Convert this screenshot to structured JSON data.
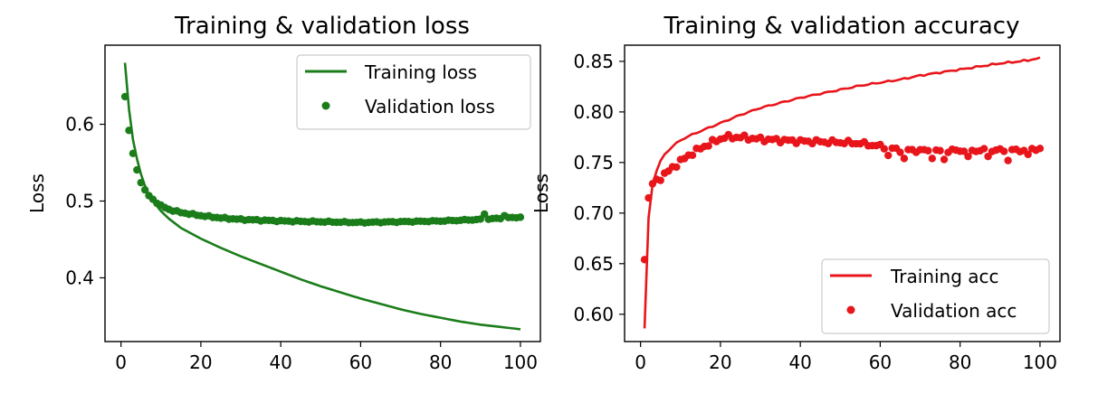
{
  "chart_data": [
    {
      "type": "line",
      "title": "Training & validation loss",
      "xlabel": "",
      "ylabel": "Loss",
      "xlim": [
        -4,
        105
      ],
      "ylim": [
        0.317,
        0.703
      ],
      "xticks": [
        0,
        20,
        40,
        60,
        80,
        100
      ],
      "xtick_labels": [
        "0",
        "20",
        "40",
        "60",
        "80",
        "100"
      ],
      "yticks": [
        0.4,
        0.5,
        0.6
      ],
      "ytick_labels": [
        "0.4",
        "0.5",
        "0.6"
      ],
      "legend_position": "top-right",
      "grid": false,
      "series": [
        {
          "name": "Training loss",
          "style": "line",
          "color": "#1a7d1a",
          "anchors": [
            [
              1,
              0.68
            ],
            [
              2,
              0.62
            ],
            [
              3,
              0.58
            ],
            [
              4,
              0.555
            ],
            [
              5,
              0.535
            ],
            [
              6,
              0.52
            ],
            [
              7,
              0.508
            ],
            [
              8,
              0.5
            ],
            [
              10,
              0.487
            ],
            [
              12,
              0.477
            ],
            [
              15,
              0.465
            ],
            [
              20,
              0.451
            ],
            [
              25,
              0.439
            ],
            [
              30,
              0.428
            ],
            [
              35,
              0.418
            ],
            [
              40,
              0.408
            ],
            [
              45,
              0.398
            ],
            [
              50,
              0.389
            ],
            [
              55,
              0.381
            ],
            [
              60,
              0.373
            ],
            [
              65,
              0.366
            ],
            [
              70,
              0.359
            ],
            [
              75,
              0.353
            ],
            [
              80,
              0.348
            ],
            [
              85,
              0.343
            ],
            [
              90,
              0.339
            ],
            [
              95,
              0.336
            ],
            [
              100,
              0.333
            ]
          ]
        },
        {
          "name": "Validation loss",
          "style": "points",
          "color": "#1a7d1a",
          "anchors": [
            [
              1,
              0.636
            ],
            [
              2,
              0.592
            ],
            [
              3,
              0.562
            ],
            [
              4,
              0.54
            ],
            [
              5,
              0.525
            ],
            [
              6,
              0.514
            ],
            [
              7,
              0.507
            ],
            [
              8,
              0.502
            ],
            [
              10,
              0.494
            ],
            [
              12,
              0.489
            ],
            [
              15,
              0.485
            ],
            [
              20,
              0.481
            ],
            [
              25,
              0.478
            ],
            [
              30,
              0.476
            ],
            [
              40,
              0.474
            ],
            [
              50,
              0.473
            ],
            [
              60,
              0.472
            ],
            [
              70,
              0.473
            ],
            [
              80,
              0.474
            ],
            [
              90,
              0.476
            ],
            [
              100,
              0.479
            ]
          ],
          "overrides": [
            [
              91,
              0.483
            ],
            [
              96,
              0.481
            ]
          ]
        }
      ]
    },
    {
      "type": "line",
      "title": "Training & validation accuracy",
      "xlabel": "",
      "ylabel": "Loss",
      "xlim": [
        -4,
        105
      ],
      "ylim": [
        0.573,
        0.866
      ],
      "xticks": [
        0,
        20,
        40,
        60,
        80,
        100
      ],
      "xtick_labels": [
        "0",
        "20",
        "40",
        "60",
        "80",
        "100"
      ],
      "yticks": [
        0.6,
        0.65,
        0.7,
        0.75,
        0.8,
        0.85
      ],
      "ytick_labels": [
        "0.60",
        "0.65",
        "0.70",
        "0.75",
        "0.80",
        "0.85"
      ],
      "legend_position": "bottom-right",
      "grid": false,
      "series": [
        {
          "name": "Training acc",
          "style": "line",
          "color": "#e8151b",
          "anchors": [
            [
              1,
              0.586
            ],
            [
              2,
              0.695
            ],
            [
              3,
              0.728
            ],
            [
              4,
              0.742
            ],
            [
              5,
              0.751
            ],
            [
              6,
              0.758
            ],
            [
              8,
              0.766
            ],
            [
              10,
              0.772
            ],
            [
              12,
              0.776
            ],
            [
              15,
              0.781
            ],
            [
              20,
              0.789
            ],
            [
              25,
              0.797
            ],
            [
              30,
              0.804
            ],
            [
              35,
              0.809
            ],
            [
              40,
              0.814
            ],
            [
              45,
              0.818
            ],
            [
              50,
              0.822
            ],
            [
              55,
              0.826
            ],
            [
              60,
              0.829
            ],
            [
              65,
              0.832
            ],
            [
              70,
              0.836
            ],
            [
              75,
              0.839
            ],
            [
              80,
              0.842
            ],
            [
              85,
              0.845
            ],
            [
              90,
              0.848
            ],
            [
              95,
              0.85
            ],
            [
              100,
              0.853
            ]
          ]
        },
        {
          "name": "Validation acc",
          "style": "points",
          "color": "#e8151b",
          "anchors": [
            [
              1,
              0.654
            ],
            [
              2,
              0.715
            ],
            [
              3,
              0.729
            ],
            [
              4,
              0.732
            ],
            [
              6,
              0.738
            ],
            [
              8,
              0.745
            ],
            [
              10,
              0.751
            ],
            [
              12,
              0.757
            ],
            [
              15,
              0.764
            ],
            [
              18,
              0.77
            ],
            [
              21,
              0.775
            ],
            [
              25,
              0.775
            ],
            [
              30,
              0.773
            ],
            [
              40,
              0.771
            ],
            [
              50,
              0.77
            ],
            [
              55,
              0.769
            ],
            [
              60,
              0.766
            ],
            [
              65,
              0.762
            ],
            [
              70,
              0.762
            ],
            [
              75,
              0.761
            ],
            [
              80,
              0.762
            ],
            [
              85,
              0.762
            ],
            [
              90,
              0.762
            ],
            [
              95,
              0.762
            ],
            [
              100,
              0.764
            ]
          ],
          "overrides": [
            [
              62,
              0.757
            ],
            [
              66,
              0.754
            ],
            [
              73,
              0.754
            ],
            [
              76,
              0.753
            ],
            [
              82,
              0.756
            ],
            [
              87,
              0.756
            ],
            [
              92,
              0.752
            ],
            [
              97,
              0.758
            ]
          ]
        }
      ]
    }
  ]
}
